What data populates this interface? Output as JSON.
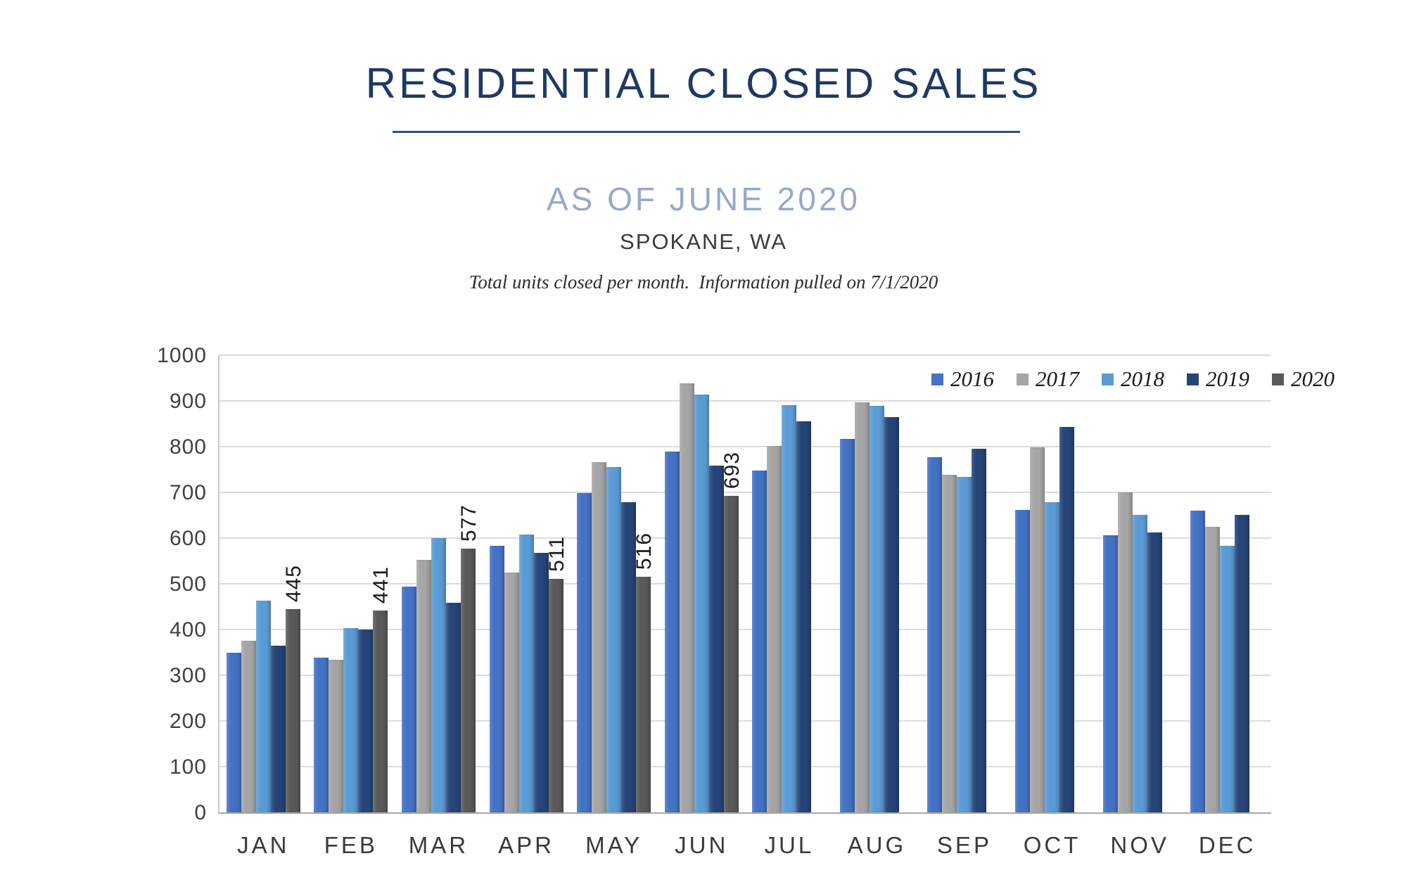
{
  "header": {
    "title": "RESIDENTIAL CLOSED SALES",
    "subtitle": "AS OF JUNE 2020",
    "location": "SPOKANE, WA",
    "note": "Total units closed per month.  Information pulled on 7/1/2020"
  },
  "colors": {
    "title": "#1F3965",
    "underline": "#2F4E8C",
    "subtitle": "#97A9C7",
    "gridline": "#DCDCDC",
    "axis": "#A6A6A6",
    "tick_text": "#404040"
  },
  "chart_data": {
    "type": "bar",
    "title": "",
    "xlabel": "",
    "ylabel": "",
    "ylim": [
      0,
      1000
    ],
    "yticks": [
      0,
      100,
      200,
      300,
      400,
      500,
      600,
      700,
      800,
      900,
      1000
    ],
    "grid": true,
    "legend_position": "top-right",
    "categories": [
      "JAN",
      "FEB",
      "MAR",
      "APR",
      "MAY",
      "JUN",
      "JUL",
      "AUG",
      "SEP",
      "OCT",
      "NOV",
      "DEC"
    ],
    "series": [
      {
        "name": "2016",
        "color": "#4472C4",
        "values": [
          350,
          338,
          494,
          583,
          698,
          789,
          748,
          817,
          777,
          662,
          606,
          660
        ]
      },
      {
        "name": "2017",
        "color": "#A5A5A5",
        "values": [
          376,
          334,
          553,
          524,
          766,
          938,
          802,
          897,
          739,
          799,
          700,
          625
        ]
      },
      {
        "name": "2018",
        "color": "#5B9BD5",
        "values": [
          463,
          403,
          600,
          607,
          755,
          914,
          891,
          890,
          734,
          678,
          651,
          583
        ]
      },
      {
        "name": "2019",
        "color": "#264478",
        "values": [
          365,
          400,
          459,
          567,
          678,
          759,
          856,
          864,
          796,
          843,
          613,
          651
        ]
      },
      {
        "name": "2020",
        "color": "#595959",
        "values": [
          445,
          441,
          577,
          511,
          516,
          693,
          null,
          null,
          null,
          null,
          null,
          null
        ],
        "data_labels": true
      }
    ]
  }
}
